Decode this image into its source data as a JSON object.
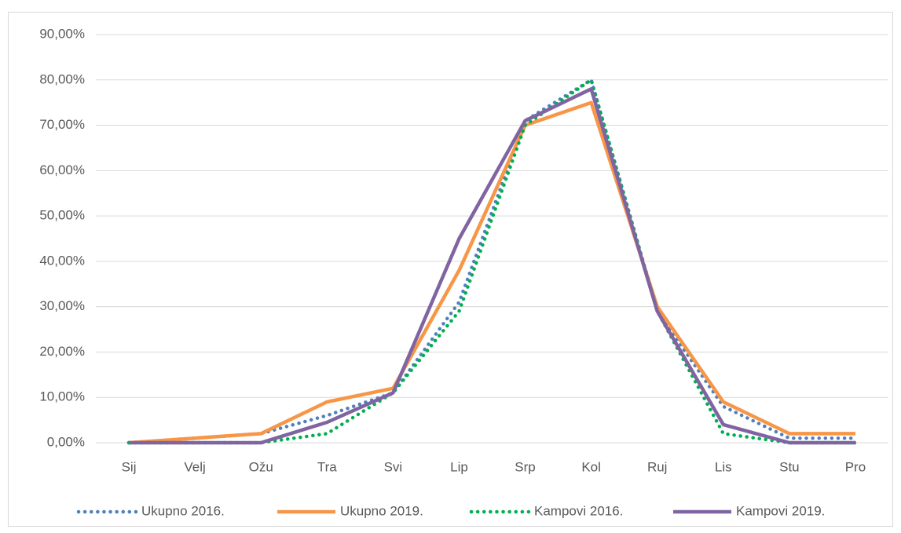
{
  "chart_data": {
    "type": "line",
    "categories": [
      "Sij",
      "Velj",
      "Ožu",
      "Tra",
      "Svi",
      "Lip",
      "Srp",
      "Kol",
      "Ruj",
      "Lis",
      "Stu",
      "Pro"
    ],
    "series": [
      {
        "name": "Ukupno 2016.",
        "color": "#4f81bd",
        "style": "dotted",
        "values": [
          0,
          1,
          2,
          6,
          11,
          31,
          71,
          80,
          29,
          8,
          1,
          1
        ]
      },
      {
        "name": "Ukupno 2019.",
        "color": "#f79646",
        "style": "solid",
        "values": [
          0,
          1,
          2,
          9,
          12,
          38,
          70,
          75,
          30,
          9,
          2,
          2
        ]
      },
      {
        "name": "Kampovi 2016.",
        "color": "#00b050",
        "style": "dotted",
        "values": [
          0,
          0,
          0,
          2,
          11,
          29,
          70,
          80,
          29,
          2,
          0,
          0
        ]
      },
      {
        "name": "Kampovi 2019.",
        "color": "#8064a2",
        "style": "solid",
        "values": [
          0,
          0,
          0,
          4.5,
          11,
          45,
          71,
          78,
          29,
          4,
          0,
          0
        ]
      }
    ],
    "ylim": [
      0,
      90
    ],
    "yticks": [
      {
        "value": 0,
        "label": "0,00%"
      },
      {
        "value": 10,
        "label": "10,00%"
      },
      {
        "value": 20,
        "label": "20,00%"
      },
      {
        "value": 30,
        "label": "30,00%"
      },
      {
        "value": 40,
        "label": "40,00%"
      },
      {
        "value": 50,
        "label": "50,00%"
      },
      {
        "value": 60,
        "label": "60,00%"
      },
      {
        "value": 70,
        "label": "70,00%"
      },
      {
        "value": 80,
        "label": "80,00%"
      },
      {
        "value": 90,
        "label": "90,00%"
      }
    ],
    "grid": true,
    "legend": "bottom"
  }
}
